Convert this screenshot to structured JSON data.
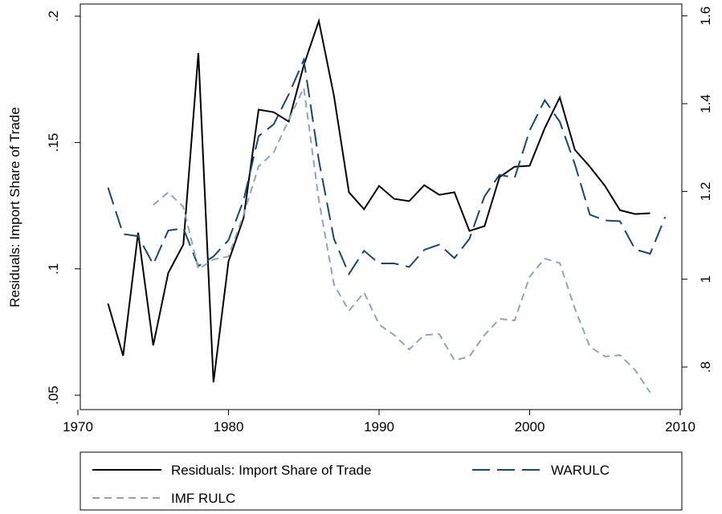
{
  "chart_data": {
    "type": "line",
    "y_label": "Residuals: Import Share of Trade",
    "x": [
      1972,
      1973,
      1974,
      1975,
      1976,
      1977,
      1978,
      1979,
      1980,
      1981,
      1982,
      1983,
      1984,
      1985,
      1986,
      1987,
      1988,
      1989,
      1990,
      1991,
      1992,
      1993,
      1994,
      1995,
      1996,
      1997,
      1998,
      1999,
      2000,
      2001,
      2002,
      2003,
      2004,
      2005,
      2006,
      2007,
      2008,
      2009
    ],
    "series": [
      {
        "name": "Residuals: Import Share of Trade",
        "color": "#000000",
        "dash": "solid",
        "values": [
          0.0863,
          0.0656,
          0.1143,
          0.0697,
          0.0984,
          0.1096,
          0.1854,
          0.0551,
          0.1029,
          0.1201,
          0.163,
          0.162,
          0.1583,
          0.1806,
          0.1981,
          0.1685,
          0.1303,
          0.1236,
          0.1328,
          0.1277,
          0.1268,
          0.1331,
          0.1293,
          0.1303,
          0.115,
          0.1169,
          0.1363,
          0.1404,
          0.1408,
          0.1557,
          0.1678,
          0.1471,
          0.1404,
          0.1328,
          0.1232,
          0.1217,
          0.122,
          null
        ]
      },
      {
        "name": "WARULC",
        "color": "#1a476f",
        "dash": "long",
        "axis": "y2",
        "values": [
          1.209,
          1.103,
          1.098,
          1.034,
          1.111,
          1.116,
          1.03,
          1.052,
          1.089,
          1.18,
          1.326,
          1.353,
          1.421,
          1.5,
          1.271,
          1.092,
          1.012,
          1.065,
          1.036,
          1.036,
          1.028,
          1.067,
          1.079,
          1.048,
          1.092,
          1.189,
          1.238,
          1.231,
          1.339,
          1.408,
          1.359,
          1.262,
          1.147,
          1.134,
          1.132,
          1.068,
          1.058,
          1.142
        ]
      },
      {
        "name": "IMF RULC",
        "color": "#8da4bd",
        "dash": "short",
        "axis": "y2",
        "values": [
          null,
          null,
          null,
          1.169,
          1.198,
          1.165,
          1.023,
          1.045,
          1.052,
          1.147,
          1.257,
          1.289,
          1.363,
          1.436,
          1.18,
          0.988,
          0.928,
          0.97,
          0.897,
          0.873,
          0.84,
          0.873,
          0.875,
          0.815,
          0.824,
          0.873,
          0.91,
          0.906,
          1.006,
          1.047,
          1.037,
          0.933,
          0.846,
          0.824,
          0.827,
          0.793,
          0.742,
          null
        ]
      }
    ],
    "xlim": [
      1970,
      2010
    ],
    "xticks": [
      1970,
      1980,
      1990,
      2000,
      2010
    ],
    "ylim": [
      0.0443,
      0.2048
    ],
    "yticks": [
      {
        "value": 0.05,
        "label": ".05"
      },
      {
        "value": 0.1,
        "label": ".1"
      },
      {
        "value": 0.15,
        "label": ".15"
      },
      {
        "value": 0.2,
        "label": ".2"
      }
    ],
    "y2lim": [
      0.703,
      1.627
    ],
    "y2ticks": [
      {
        "value": 0.8,
        "label": ".8"
      },
      1,
      1.2,
      1.4,
      1.6
    ],
    "grid": false,
    "legend_position": "bottom"
  }
}
